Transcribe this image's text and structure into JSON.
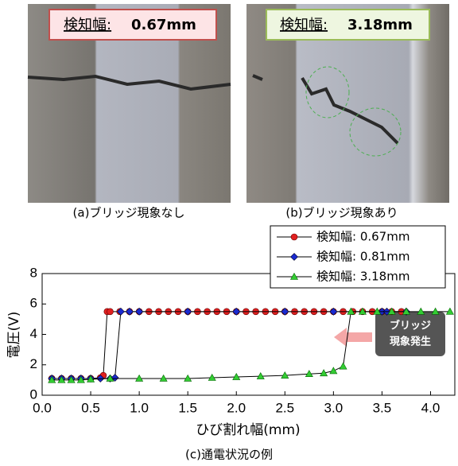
{
  "panels": [
    {
      "label_name": "検知幅:",
      "label_value": "0.67mm",
      "caption": "(a)ブリッジ現象なし"
    },
    {
      "label_name": "検知幅:",
      "label_value": "3.18mm",
      "caption": "(b)ブリッジ現象あり"
    }
  ],
  "chart_data": {
    "type": "line",
    "xlabel": "ひび割れ幅(mm)",
    "ylabel": "電圧(V)",
    "xlim": [
      0,
      4.25
    ],
    "ylim": [
      0,
      8
    ],
    "xticks": [
      {
        "value": 0,
        "label": "0.0"
      },
      0.5,
      {
        "value": 1,
        "label": "1.0"
      },
      1.5,
      {
        "value": 2,
        "label": "2.0"
      },
      2.5,
      {
        "value": 3,
        "label": "3.0"
      },
      3.5,
      {
        "value": 4,
        "label": "4.0"
      }
    ],
    "yticks": [
      0,
      2,
      4,
      6,
      8
    ],
    "legend": "top-right",
    "series": [
      {
        "name": "検知幅: 0.67mm",
        "color": "#e02020",
        "marker": "circle",
        "x": [
          0.1,
          0.2,
          0.3,
          0.4,
          0.5,
          0.6,
          0.63,
          0.67,
          0.7,
          0.8,
          0.9,
          1.0,
          1.1,
          1.2,
          1.3,
          1.4,
          1.5,
          1.6,
          1.7,
          1.8,
          1.9,
          2.0,
          2.1,
          2.2,
          2.3,
          2.4,
          2.5,
          2.6,
          2.7,
          2.8,
          2.9,
          3.0,
          3.1,
          3.2,
          3.3,
          3.4,
          3.5,
          3.6,
          3.7
        ],
        "values": [
          1.1,
          1.1,
          1.1,
          1.1,
          1.1,
          1.15,
          1.3,
          5.5,
          5.5,
          5.5,
          5.5,
          5.5,
          5.5,
          5.5,
          5.5,
          5.5,
          5.5,
          5.5,
          5.5,
          5.5,
          5.5,
          5.5,
          5.5,
          5.5,
          5.5,
          5.5,
          5.5,
          5.5,
          5.5,
          5.5,
          5.5,
          5.5,
          5.5,
          5.5,
          5.5,
          5.5,
          5.5,
          5.5,
          5.5
        ]
      },
      {
        "name": "検知幅: 0.81mm",
        "color": "#1a2ad0",
        "marker": "diamond",
        "x": [
          0.1,
          0.2,
          0.3,
          0.4,
          0.5,
          0.6,
          0.7,
          0.75,
          0.81,
          0.9,
          1.0,
          1.5,
          2.0,
          2.5,
          3.0,
          3.5,
          3.55,
          3.75
        ],
        "values": [
          1.1,
          1.1,
          1.1,
          1.1,
          1.1,
          1.1,
          1.1,
          1.15,
          5.5,
          5.5,
          5.5,
          5.5,
          5.5,
          5.5,
          5.5,
          5.5,
          5.5,
          5.5
        ]
      },
      {
        "name": "検知幅: 3.18mm",
        "color": "#33cc33",
        "marker": "triangle",
        "x": [
          0.1,
          0.2,
          0.3,
          0.4,
          0.5,
          0.7,
          1.0,
          1.25,
          1.5,
          1.75,
          2.0,
          2.25,
          2.5,
          2.75,
          2.9,
          3.0,
          3.1,
          3.18,
          3.3,
          3.45,
          3.6,
          3.75,
          3.9,
          4.05,
          4.2
        ],
        "values": [
          1.0,
          1.0,
          1.0,
          1.0,
          1.05,
          1.1,
          1.1,
          1.1,
          1.1,
          1.15,
          1.2,
          1.25,
          1.3,
          1.4,
          1.45,
          1.6,
          1.9,
          5.5,
          5.5,
          5.5,
          5.5,
          5.5,
          5.5,
          5.5,
          5.5
        ]
      }
    ],
    "annotation": [
      "ブリッジ",
      "現象発生"
    ]
  },
  "caption": "(c)通電状況の例"
}
